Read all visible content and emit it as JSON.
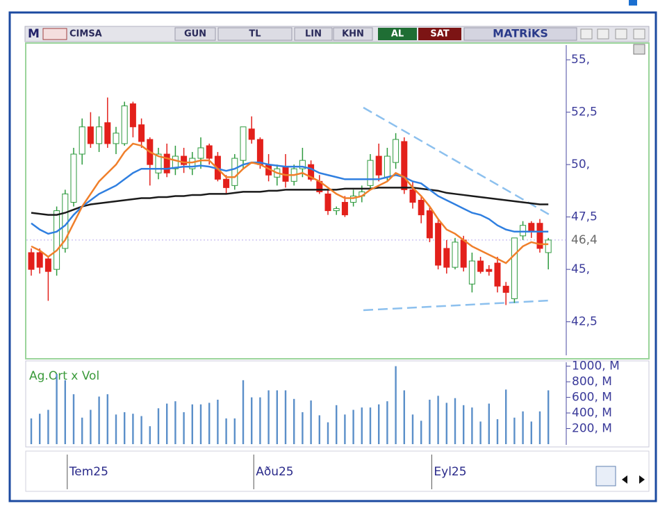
{
  "toolbar": {
    "mode": "M",
    "symbol": "CIMSA",
    "period": "GUN",
    "currency": "TL",
    "scale": "LIN",
    "khn": "KHN",
    "buy": "AL",
    "sell": "SAT",
    "brand": "MATRiKS"
  },
  "chart_data": [
    {
      "type": "candlestick",
      "categories": [
        null,
        null,
        null,
        null,
        "Tem25",
        null,
        null,
        null,
        null,
        null,
        null,
        null,
        null,
        null,
        null,
        null,
        null,
        null,
        null,
        null,
        null,
        null,
        null,
        null,
        null,
        null,
        "Aðu25",
        null,
        null,
        null,
        null,
        null,
        null,
        null,
        null,
        null,
        null,
        null,
        null,
        null,
        null,
        null,
        null,
        null,
        null,
        null,
        null,
        "Eyl25",
        null,
        null,
        null,
        null,
        null,
        null,
        null,
        null,
        null,
        null,
        null,
        null,
        null,
        null
      ],
      "open": [
        45.8,
        45.8,
        45.5,
        45,
        46,
        48.2,
        50.5,
        51.8,
        51,
        52,
        51,
        51,
        52.9,
        51.9,
        51.2,
        49.6,
        50.5,
        49.8,
        50.4,
        49.8,
        50.3,
        50.9,
        50.4,
        49.3,
        49,
        50.2,
        51.7,
        51.2,
        50,
        49.4,
        49.9,
        49.2,
        49.8,
        50,
        49.2,
        48.6,
        47.8,
        48.2,
        48.2,
        48.5,
        49,
        50.4,
        49.4,
        50.1,
        51.1,
        48.8,
        48.3,
        47.8,
        47.2,
        46,
        45.1,
        46.4,
        44.3,
        45.4,
        45,
        45.3,
        44.2,
        43.6,
        46.6,
        47.2,
        47.2,
        45.8
      ],
      "high": [
        46,
        46,
        45.6,
        48,
        48.8,
        50.8,
        52.2,
        52.5,
        52.3,
        53.2,
        51.8,
        53,
        53,
        52.2,
        51.3,
        50.8,
        51,
        50.9,
        50.8,
        50.6,
        51.3,
        51,
        50.6,
        49.5,
        50.5,
        51.8,
        52.3,
        51.3,
        50.5,
        50,
        50.5,
        50,
        50.8,
        50.2,
        49.5,
        48.8,
        48,
        48.5,
        48.8,
        49,
        50.5,
        51,
        50.8,
        51.5,
        51.3,
        49.2,
        48.5,
        48,
        47.4,
        46.4,
        46.5,
        46.6,
        45.8,
        45.6,
        45.2,
        45.6,
        44.4,
        46.5,
        47.3,
        47.3,
        47.4,
        46.5
      ],
      "low": [
        44.7,
        44.8,
        43.5,
        44.7,
        45.8,
        48,
        50,
        50.8,
        50.6,
        50.8,
        50.5,
        50.9,
        51.3,
        50.8,
        49,
        49.3,
        49.4,
        49.5,
        49.6,
        49.5,
        49.8,
        50,
        49.2,
        48.6,
        48.8,
        49.8,
        51,
        49.8,
        49.2,
        49,
        48.9,
        49,
        49.4,
        49.2,
        48.6,
        47.6,
        47.6,
        47.5,
        48,
        48.2,
        48.8,
        49.2,
        49.2,
        49.8,
        48.6,
        47.9,
        47.2,
        46.3,
        45,
        44.8,
        45,
        44.9,
        43.9,
        44.8,
        44.7,
        43.9,
        43.3,
        43.4,
        46.4,
        46.5,
        45.8,
        45
      ],
      "close": [
        45,
        45.1,
        44.9,
        47.8,
        48.6,
        50.5,
        51.8,
        51,
        51.8,
        51,
        51.5,
        52.8,
        51.8,
        51.1,
        50,
        50.5,
        49.6,
        50.4,
        50,
        50.3,
        50.8,
        50.3,
        49.3,
        48.9,
        50.3,
        51.8,
        51.2,
        50,
        49.5,
        49.8,
        49.2,
        49.8,
        50.2,
        49.3,
        48.7,
        47.8,
        47.9,
        47.6,
        48.5,
        48.7,
        50.2,
        49.5,
        50.4,
        51.2,
        48.8,
        48.2,
        47.6,
        46.5,
        45.2,
        45.1,
        46.3,
        45.1,
        45.4,
        44.9,
        44.9,
        44.2,
        43.9,
        46.5,
        47.1,
        46.8,
        46,
        46.4
      ],
      "up_color": "#2e9a3e",
      "down_color": "#e3201b",
      "lines": [
        {
          "color": "#1a1a1a",
          "values": [
            47.7,
            47.65,
            47.6,
            47.6,
            47.7,
            47.85,
            48,
            48.1,
            48.15,
            48.2,
            48.25,
            48.3,
            48.35,
            48.4,
            48.4,
            48.45,
            48.45,
            48.5,
            48.5,
            48.55,
            48.55,
            48.6,
            48.6,
            48.6,
            48.65,
            48.7,
            48.7,
            48.7,
            48.75,
            48.75,
            48.8,
            48.8,
            48.8,
            48.8,
            48.8,
            48.8,
            48.8,
            48.85,
            48.85,
            48.85,
            48.85,
            48.9,
            48.9,
            48.9,
            48.9,
            48.9,
            48.85,
            48.8,
            48.75,
            48.65,
            48.6,
            48.55,
            48.5,
            48.45,
            48.4,
            48.35,
            48.3,
            48.25,
            48.2,
            48.15,
            48.1,
            48.1
          ]
        },
        {
          "color": "#2f7fe0",
          "values": [
            47.2,
            46.9,
            46.7,
            46.8,
            47.1,
            47.6,
            48,
            48.3,
            48.6,
            48.8,
            49,
            49.3,
            49.6,
            49.8,
            49.8,
            49.8,
            49.8,
            49.85,
            49.9,
            49.9,
            49.95,
            49.9,
            49.8,
            49.7,
            49.8,
            50,
            50.1,
            50.1,
            50,
            49.95,
            49.9,
            49.9,
            49.9,
            49.8,
            49.6,
            49.5,
            49.4,
            49.3,
            49.3,
            49.3,
            49.3,
            49.3,
            49.4,
            49.5,
            49.4,
            49.2,
            49.1,
            48.8,
            48.5,
            48.3,
            48.1,
            47.9,
            47.7,
            47.6,
            47.4,
            47.1,
            46.9,
            46.8,
            46.8,
            46.8,
            46.8,
            46.8
          ]
        },
        {
          "color": "#f07f2a",
          "values": [
            46.1,
            45.9,
            45.6,
            45.9,
            46.4,
            47.2,
            48,
            48.6,
            49.2,
            49.6,
            50,
            50.6,
            51,
            50.9,
            50.6,
            50.4,
            50.3,
            50.2,
            50.1,
            50.1,
            50.2,
            50.2,
            49.8,
            49.4,
            49.4,
            49.8,
            50.1,
            50,
            49.8,
            49.6,
            49.5,
            49.5,
            49.6,
            49.4,
            49.2,
            48.9,
            48.6,
            48.4,
            48.4,
            48.5,
            48.8,
            49,
            49.2,
            49.6,
            49.4,
            48.9,
            48.5,
            48,
            47.4,
            46.9,
            46.7,
            46.4,
            46.1,
            45.9,
            45.7,
            45.5,
            45.3,
            45.7,
            46.1,
            46.3,
            46.2,
            46.2
          ]
        }
      ],
      "last_value": 46.4,
      "last_label": "46,4",
      "ylim": [
        40.8,
        55.7
      ],
      "yticks": [
        {
          "value": 55,
          "label": "55,"
        },
        {
          "value": 52.5,
          "label": "52,5"
        },
        {
          "value": 50,
          "label": "50,"
        },
        {
          "value": 47.5,
          "label": "47,5"
        },
        {
          "value": 45,
          "label": "45,"
        },
        {
          "value": 42.5,
          "label": "42,5"
        }
      ]
    },
    {
      "type": "bar",
      "title": "Ag.Ort x Vol",
      "color": "#5b8fc9",
      "values": [
        330,
        390,
        440,
        900,
        820,
        640,
        340,
        440,
        610,
        640,
        380,
        410,
        390,
        360,
        230,
        460,
        520,
        550,
        410,
        510,
        510,
        530,
        570,
        330,
        330,
        820,
        600,
        600,
        690,
        690,
        690,
        580,
        410,
        560,
        370,
        280,
        500,
        380,
        440,
        470,
        470,
        510,
        550,
        1000,
        690,
        380,
        300,
        570,
        620,
        530,
        590,
        500,
        470,
        290,
        520,
        320,
        700,
        340,
        420,
        290,
        420,
        690
      ],
      "ylim": [
        0,
        1050
      ],
      "yticks": [
        {
          "value": 1000,
          "label": "1000, M"
        },
        {
          "value": 800,
          "label": "800, M"
        },
        {
          "value": 600,
          "label": "600, M"
        },
        {
          "value": 400,
          "label": "400, M"
        },
        {
          "value": 200,
          "label": "200, M"
        }
      ]
    }
  ]
}
